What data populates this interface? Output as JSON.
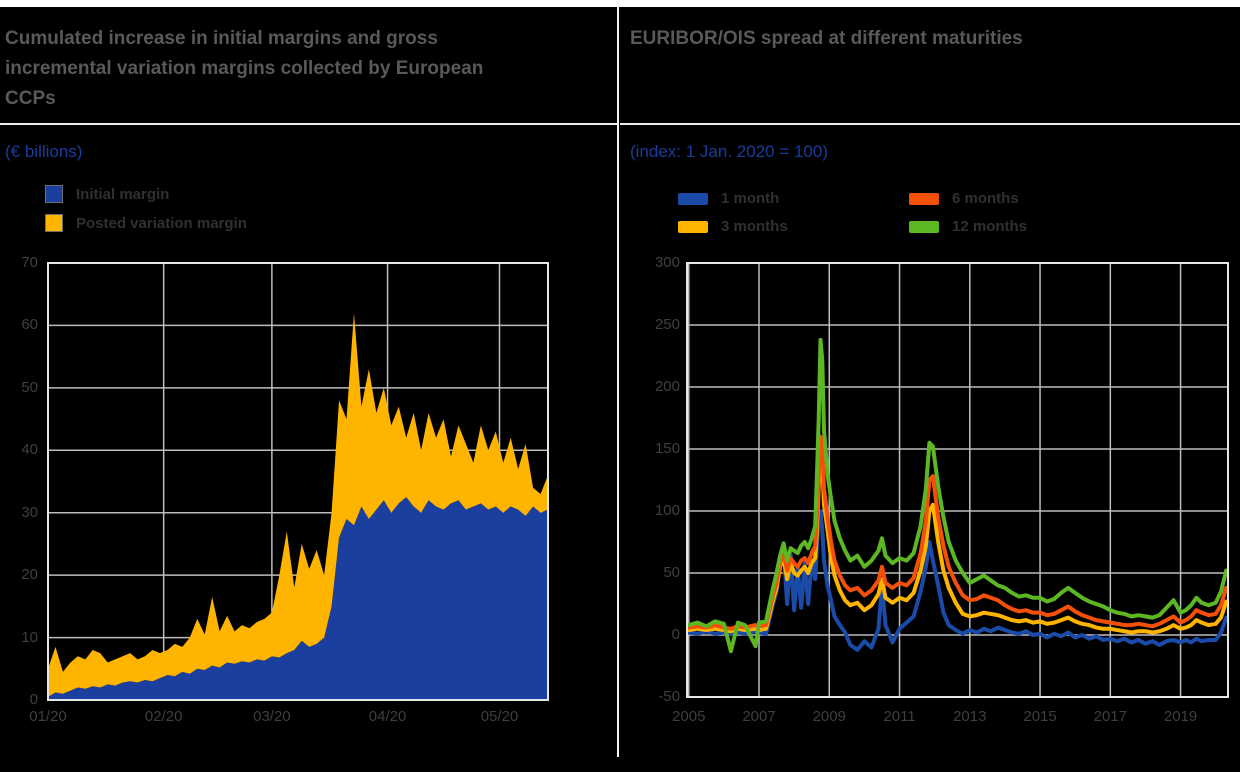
{
  "colors": {
    "title": "#595959",
    "subtitle": "#1a3c9c",
    "tick_label": "#3f3f3f",
    "legend_text": "#303030",
    "grid": "#bdbdbd",
    "plot_border": "#e6e6e6",
    "background": "#000000"
  },
  "left_panel": {
    "title": "Cumulated increase in initial margins and gross incremental variation margins collected by European CCPs",
    "subtitle": "(€ billions)",
    "chart_data": {
      "type": "area-stacked",
      "title": "Cumulated increase in initial margins and gross incremental variation margins collected by European CCPs",
      "ylabel": "€ billions",
      "xlim": [
        0,
        134
      ],
      "ylim": [
        0,
        70
      ],
      "y_ticks": [
        0,
        10,
        20,
        30,
        40,
        50,
        60,
        70
      ],
      "x_ticks": {
        "days": [
          0,
          31,
          60,
          91,
          121
        ],
        "labels": [
          "01/20",
          "02/20",
          "03/20",
          "04/20",
          "05/20"
        ]
      },
      "x_days": [
        0,
        2,
        4,
        6,
        8,
        10,
        12,
        14,
        16,
        18,
        20,
        22,
        24,
        26,
        28,
        30,
        32,
        34,
        36,
        38,
        40,
        42,
        44,
        46,
        48,
        50,
        52,
        54,
        56,
        58,
        60,
        62,
        64,
        66,
        68,
        70,
        72,
        74,
        76,
        78,
        80,
        82,
        84,
        86,
        88,
        90,
        92,
        94,
        96,
        98,
        100,
        102,
        104,
        106,
        108,
        110,
        112,
        114,
        116,
        118,
        120,
        122,
        124,
        126,
        128,
        130,
        132,
        134
      ],
      "series": [
        {
          "name": "Initial margin",
          "color": "#1B3F9E",
          "values": [
            0.5,
            1.2,
            1.0,
            1.5,
            2.0,
            1.8,
            2.2,
            2.0,
            2.5,
            2.3,
            2.8,
            3.0,
            2.8,
            3.2,
            3.0,
            3.5,
            4.0,
            3.8,
            4.5,
            4.2,
            5.0,
            4.8,
            5.5,
            5.2,
            6.0,
            5.8,
            6.2,
            6.0,
            6.5,
            6.3,
            7.0,
            6.8,
            7.5,
            8.0,
            9.5,
            8.5,
            9.0,
            10.0,
            15.0,
            26.0,
            29.0,
            28.0,
            31.0,
            29.0,
            30.5,
            32.0,
            30.0,
            31.5,
            32.5,
            31.0,
            30.0,
            32.0,
            31.0,
            30.5,
            31.5,
            32.0,
            30.5,
            31.0,
            31.5,
            30.5,
            31.0,
            30.0,
            31.0,
            30.5,
            29.5,
            31.0,
            30.0,
            30.5
          ]
        },
        {
          "name": "Posted variation margin",
          "color": "#FFB400",
          "values": [
            4.5,
            7.3,
            3.5,
            4.5,
            5.0,
            4.7,
            5.8,
            5.5,
            3.5,
            4.2,
            4.2,
            4.5,
            3.7,
            3.8,
            5.0,
            4.0,
            4.0,
            5.2,
            4.0,
            5.8,
            8.0,
            5.7,
            11.0,
            5.8,
            7.5,
            5.2,
            5.8,
            5.5,
            6.0,
            6.7,
            7.0,
            13.2,
            19.5,
            10.0,
            15.5,
            12.5,
            15.0,
            10.0,
            15.0,
            22.0,
            16.0,
            34.0,
            16.0,
            24.0,
            15.5,
            18.0,
            14.0,
            15.5,
            9.5,
            15.0,
            10.0,
            14.0,
            11.0,
            14.5,
            7.5,
            12.0,
            10.5,
            7.0,
            12.5,
            9.5,
            12.0,
            8.0,
            11.0,
            6.5,
            11.5,
            3.0,
            3.0,
            5.5
          ]
        }
      ]
    }
  },
  "right_panel": {
    "title": "EURIBOR/OIS spread at different maturities",
    "subtitle": "(index: 1 Jan. 2020 = 100)",
    "chart_data": {
      "type": "line",
      "title": "EURIBOR/OIS spread at different maturities",
      "xlim": [
        2004.95,
        2020.35
      ],
      "ylim": [
        -50,
        300
      ],
      "y_ticks": [
        -50,
        0,
        50,
        100,
        150,
        200,
        250,
        300
      ],
      "x_ticks": {
        "values": [
          2005,
          2007,
          2009,
          2011,
          2013,
          2015,
          2017,
          2019
        ],
        "labels": [
          "2005",
          "2007",
          "2009",
          "2011",
          "2013",
          "2015",
          "2017",
          "2019"
        ]
      },
      "x": [
        2005.0,
        2005.25,
        2005.5,
        2005.75,
        2006.0,
        2006.2,
        2006.4,
        2006.6,
        2006.9,
        2007.0,
        2007.2,
        2007.4,
        2007.5,
        2007.6,
        2007.7,
        2007.8,
        2007.9,
        2008.0,
        2008.1,
        2008.2,
        2008.3,
        2008.4,
        2008.5,
        2008.6,
        2008.65,
        2008.7,
        2008.75,
        2008.8,
        2008.85,
        2008.95,
        2009.05,
        2009.15,
        2009.3,
        2009.45,
        2009.6,
        2009.8,
        2010.0,
        2010.2,
        2010.4,
        2010.5,
        2010.6,
        2010.8,
        2011.0,
        2011.2,
        2011.4,
        2011.6,
        2011.75,
        2011.85,
        2011.95,
        2012.1,
        2012.25,
        2012.4,
        2012.6,
        2012.8,
        2013.0,
        2013.2,
        2013.4,
        2013.6,
        2013.8,
        2014.0,
        2014.2,
        2014.4,
        2014.6,
        2014.8,
        2015.0,
        2015.2,
        2015.4,
        2015.6,
        2015.8,
        2016.0,
        2016.2,
        2016.4,
        2016.6,
        2016.8,
        2017.0,
        2017.2,
        2017.4,
        2017.6,
        2017.8,
        2018.0,
        2018.2,
        2018.4,
        2018.6,
        2018.8,
        2019.0,
        2019.15,
        2019.3,
        2019.45,
        2019.6,
        2019.8,
        2020.0,
        2020.15,
        2020.3
      ],
      "series": [
        {
          "name": "1 month",
          "color": "#1B4BA8",
          "values": [
            2,
            1,
            3,
            1,
            2,
            1,
            2,
            1,
            3,
            2,
            1,
            25,
            35,
            60,
            70,
            25,
            65,
            20,
            55,
            22,
            58,
            25,
            60,
            45,
            70,
            95,
            100,
            85,
            60,
            40,
            28,
            15,
            8,
            2,
            -8,
            -12,
            -5,
            -10,
            5,
            40,
            8,
            -6,
            5,
            10,
            15,
            35,
            55,
            75,
            60,
            40,
            18,
            8,
            4,
            1,
            4,
            2,
            5,
            3,
            6,
            4,
            2,
            1,
            3,
            0,
            1,
            -2,
            1,
            -1,
            2,
            -2,
            0,
            -3,
            -1,
            -4,
            -3,
            -5,
            -3,
            -6,
            -4,
            -7,
            -5,
            -8,
            -5,
            -4,
            -6,
            -4,
            -6,
            -3,
            -5,
            -4,
            -4,
            2,
            14
          ]
        },
        {
          "name": "3 months",
          "color": "#FFB400",
          "values": [
            4,
            5,
            4,
            5,
            4,
            3,
            5,
            4,
            5,
            4,
            5,
            28,
            38,
            55,
            62,
            45,
            58,
            50,
            48,
            52,
            55,
            50,
            58,
            62,
            85,
            120,
            148,
            138,
            105,
            85,
            62,
            48,
            36,
            28,
            24,
            26,
            20,
            24,
            33,
            45,
            30,
            26,
            30,
            28,
            34,
            52,
            72,
            100,
            105,
            75,
            52,
            38,
            26,
            17,
            15,
            16,
            18,
            17,
            16,
            14,
            12,
            11,
            12,
            10,
            11,
            9,
            10,
            12,
            14,
            11,
            9,
            8,
            6,
            5,
            5,
            4,
            3,
            2,
            3,
            3,
            2,
            3,
            5,
            8,
            5,
            6,
            8,
            12,
            10,
            8,
            9,
            14,
            27
          ]
        },
        {
          "name": "6 months",
          "color": "#F4500A",
          "values": [
            6,
            7,
            6,
            8,
            6,
            5,
            7,
            6,
            8,
            7,
            8,
            32,
            42,
            58,
            66,
            52,
            62,
            58,
            55,
            60,
            62,
            58,
            66,
            72,
            95,
            130,
            160,
            150,
            118,
            95,
            75,
            60,
            48,
            40,
            36,
            38,
            32,
            36,
            44,
            55,
            42,
            38,
            42,
            40,
            46,
            66,
            92,
            125,
            128,
            95,
            72,
            55,
            42,
            32,
            28,
            29,
            32,
            30,
            28,
            24,
            21,
            19,
            20,
            18,
            18,
            16,
            17,
            20,
            23,
            19,
            16,
            14,
            12,
            11,
            10,
            9,
            8,
            8,
            9,
            8,
            7,
            9,
            12,
            15,
            10,
            12,
            15,
            20,
            18,
            16,
            17,
            24,
            38
          ]
        },
        {
          "name": "12 months",
          "color": "#5CB723",
          "values": [
            8,
            10,
            7,
            11,
            9,
            -13,
            10,
            8,
            -9,
            10,
            11,
            38,
            50,
            64,
            74,
            60,
            70,
            68,
            66,
            72,
            75,
            70,
            78,
            88,
            130,
            175,
            238,
            222,
            165,
            130,
            110,
            92,
            78,
            68,
            60,
            64,
            55,
            60,
            68,
            78,
            64,
            58,
            62,
            60,
            66,
            88,
            118,
            155,
            152,
            120,
            95,
            75,
            60,
            50,
            42,
            45,
            48,
            44,
            40,
            38,
            34,
            31,
            32,
            30,
            30,
            27,
            29,
            34,
            38,
            34,
            30,
            27,
            25,
            23,
            20,
            18,
            17,
            15,
            16,
            15,
            14,
            16,
            22,
            28,
            18,
            20,
            24,
            30,
            26,
            24,
            26,
            35,
            52
          ]
        }
      ]
    }
  }
}
